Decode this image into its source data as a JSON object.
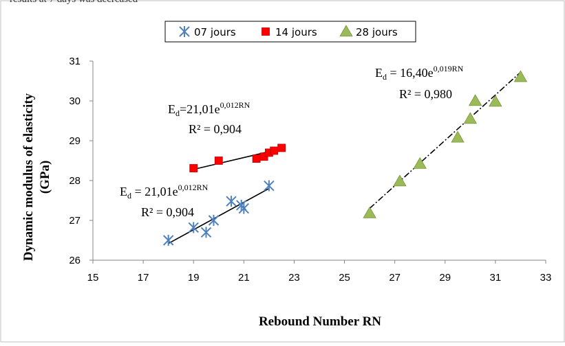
{
  "caption_fragment": "results at 7 days was decreased",
  "chart_data": {
    "type": "scatter",
    "xlabel": "Rebound Number RN",
    "ylabel_line1": "Dynamic modulus of elasticity",
    "ylabel_line2": "(GPa)",
    "xlim": [
      15,
      33
    ],
    "ylim": [
      26,
      31
    ],
    "x_ticks": [
      15,
      17,
      19,
      21,
      23,
      25,
      27,
      29,
      31,
      33
    ],
    "y_ticks": [
      26,
      27,
      28,
      29,
      30,
      31
    ],
    "grid": false,
    "legend_position": "top-center",
    "series": [
      {
        "name": "07 jours",
        "marker": "asterisk",
        "color": "#4f81bd",
        "points": [
          [
            18,
            26.5
          ],
          [
            19,
            26.82
          ],
          [
            19.5,
            26.7
          ],
          [
            19.8,
            27.0
          ],
          [
            20.5,
            27.48
          ],
          [
            20.9,
            27.38
          ],
          [
            21.0,
            27.3
          ],
          [
            22.0,
            27.87
          ]
        ],
        "trendline": {
          "x": [
            18,
            22
          ],
          "y": [
            26.42,
            27.8
          ],
          "style": "solid"
        },
        "equation": {
          "lhs": "E",
          "sub": "d",
          "base": " = 21,01e",
          "exp": "0,012RN",
          "r2": "R² = 0,904"
        }
      },
      {
        "name": "14 jours",
        "marker": "square",
        "color": "#ff0000",
        "points": [
          [
            19,
            28.31
          ],
          [
            20,
            28.5
          ],
          [
            21.5,
            28.55
          ],
          [
            21.8,
            28.6
          ],
          [
            22.0,
            28.7
          ],
          [
            22.2,
            28.75
          ],
          [
            22.5,
            28.82
          ]
        ],
        "trendline": {
          "x": [
            19,
            22.5
          ],
          "y": [
            28.28,
            28.8
          ],
          "style": "solid"
        },
        "equation": {
          "lhs": "E",
          "sub": "d",
          "base": "=21,01e",
          "exp": "0,012RN",
          "r2": "R² = 0,904"
        }
      },
      {
        "name": "28 jours",
        "marker": "triangle",
        "color": "#9bbb59",
        "points": [
          [
            26,
            27.18
          ],
          [
            27.2,
            27.98
          ],
          [
            28,
            28.42
          ],
          [
            29.5,
            29.08
          ],
          [
            30,
            29.55
          ],
          [
            30.2,
            30.0
          ],
          [
            31,
            29.98
          ],
          [
            32,
            30.6
          ]
        ],
        "trendline": {
          "x": [
            26,
            32
          ],
          "y": [
            27.3,
            30.72
          ],
          "style": "dashdot"
        },
        "equation": {
          "lhs": "E",
          "sub": "d",
          "base": " = 16,40e",
          "exp": "0,019RN",
          "r2": "R² = 0,980"
        }
      }
    ]
  }
}
